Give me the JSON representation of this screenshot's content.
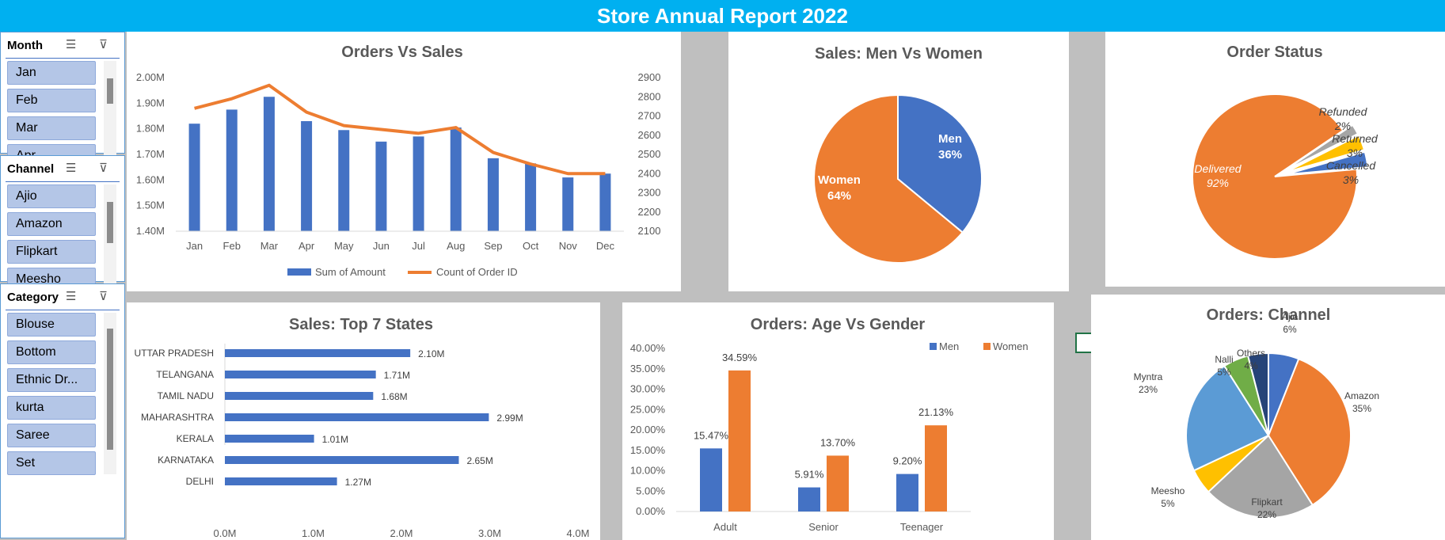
{
  "report_title": "Store Annual Report 2022",
  "slicers": [
    {
      "header": "Month",
      "items": [
        "Jan",
        "Feb",
        "Mar",
        "Apr"
      ]
    },
    {
      "header": "Channel",
      "items": [
        "Ajio",
        "Amazon",
        "Flipkart",
        "Meesho"
      ]
    },
    {
      "header": "Category",
      "items": [
        "Blouse",
        "Bottom",
        "Ethnic Dr...",
        "kurta",
        "Saree",
        "Set"
      ]
    }
  ],
  "colors": {
    "banner": "#00b0f0",
    "blue": "#4472c4",
    "orange": "#ed7d31",
    "gray": "#a5a5a5",
    "yellow": "#ffc000",
    "lightblue": "#5b9bd5",
    "green": "#70ad47",
    "navy": "#264478"
  },
  "chart_data": [
    {
      "id": "orders_vs_sales",
      "type": "bar",
      "title": "Orders Vs Sales",
      "categories": [
        "Jan",
        "Feb",
        "Mar",
        "Apr",
        "May",
        "Jun",
        "Jul",
        "Aug",
        "Sep",
        "Oct",
        "Nov",
        "Dec"
      ],
      "series": [
        {
          "name": "Sum of Amount",
          "type": "bar",
          "axis": "left",
          "values": [
            1.82,
            1.875,
            1.925,
            1.83,
            1.795,
            1.75,
            1.77,
            1.805,
            1.685,
            1.665,
            1.61,
            1.625
          ]
        },
        {
          "name": "Count of Order ID",
          "type": "line",
          "axis": "right",
          "values": [
            2740,
            2790,
            2860,
            2720,
            2650,
            2630,
            2610,
            2640,
            2510,
            2450,
            2400,
            2400
          ]
        }
      ],
      "left_ticks": [
        "1.40M",
        "1.50M",
        "1.60M",
        "1.70M",
        "1.80M",
        "1.90M",
        "2.00M"
      ],
      "right_ticks": [
        "2100",
        "2200",
        "2300",
        "2400",
        "2500",
        "2600",
        "2700",
        "2800",
        "2900"
      ],
      "ylim_left": [
        1.4,
        2.0
      ],
      "ylim_right": [
        2100,
        2900
      ],
      "legend": "bottom"
    },
    {
      "id": "sales_men_women",
      "type": "pie",
      "title": "Sales: Men Vs Women",
      "labels": [
        "Men",
        "Women"
      ],
      "values": [
        36,
        64
      ],
      "value_labels": [
        "36%",
        "64%"
      ]
    },
    {
      "id": "order_status",
      "type": "pie",
      "title": "Order Status",
      "labels": [
        "Delivered",
        "Refunded",
        "Returned",
        "Cancelled"
      ],
      "values": [
        92,
        2,
        3,
        3
      ],
      "value_labels": [
        "92%",
        "2%",
        "3%",
        "3%"
      ]
    },
    {
      "id": "top7_states",
      "type": "bar",
      "orientation": "horizontal",
      "title": "Sales: Top 7 States",
      "categories": [
        "UTTAR PRADESH",
        "TELANGANA",
        "TAMIL NADU",
        "MAHARASHTRA",
        "KERALA",
        "KARNATAKA",
        "DELHI"
      ],
      "values": [
        2.1,
        1.71,
        1.68,
        2.99,
        1.01,
        2.65,
        1.27
      ],
      "value_labels": [
        "2.10M",
        "1.71M",
        "1.68M",
        "2.99M",
        "1.01M",
        "2.65M",
        "1.27M"
      ],
      "x_ticks": [
        "0.0M",
        "1.0M",
        "2.0M",
        "3.0M",
        "4.0M"
      ],
      "xlim": [
        0,
        4
      ]
    },
    {
      "id": "age_vs_gender",
      "type": "bar",
      "title": "Orders: Age Vs Gender",
      "categories": [
        "Adult",
        "Senior",
        "Teenager"
      ],
      "series": [
        {
          "name": "Men",
          "values": [
            15.47,
            5.91,
            9.2
          ],
          "value_labels": [
            "15.47%",
            "5.91%",
            "9.20%"
          ]
        },
        {
          "name": "Women",
          "values": [
            34.59,
            13.7,
            21.13
          ],
          "value_labels": [
            "34.59%",
            "13.70%",
            "21.13%"
          ]
        }
      ],
      "y_ticks": [
        "0.00%",
        "5.00%",
        "10.00%",
        "15.00%",
        "20.00%",
        "25.00%",
        "30.00%",
        "35.00%",
        "40.00%"
      ],
      "ylim": [
        0,
        40
      ],
      "legend": "top-right"
    },
    {
      "id": "orders_channel",
      "type": "pie",
      "title": "Orders: Channel",
      "labels": [
        "Ajio",
        "Amazon",
        "Flipkart",
        "Meesho",
        "Myntra",
        "Nalli",
        "Others"
      ],
      "values": [
        6,
        35,
        22,
        5,
        23,
        5,
        4
      ],
      "value_labels": [
        "6%",
        "35%",
        "22%",
        "5%",
        "23%",
        "5%",
        "4%"
      ]
    }
  ]
}
